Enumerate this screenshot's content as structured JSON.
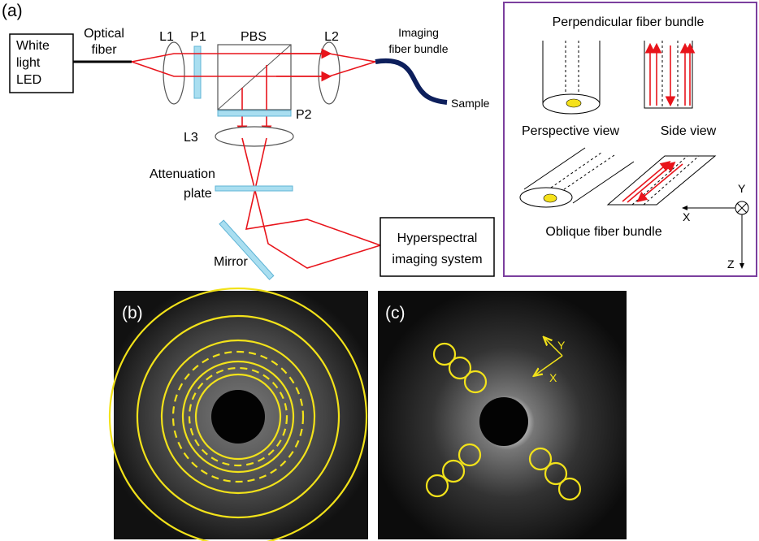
{
  "panel_a": {
    "label": "(a)",
    "source": [
      "White",
      "light",
      "LED"
    ],
    "optical_fiber": [
      "Optical",
      "fiber"
    ],
    "l1": "L1",
    "p1": "P1",
    "pbs": "PBS",
    "l2": "L2",
    "imaging_fiber_bundle": [
      "Imaging",
      "fiber bundle"
    ],
    "sample": "Sample",
    "p2": "P2",
    "l3": "L3",
    "attenuation_plate": [
      "Attenuation",
      "plate"
    ],
    "mirror": "Mirror",
    "hyperspectral": [
      "Hyperspectral",
      "imaging system"
    ]
  },
  "inset": {
    "title": "Perpendicular fiber bundle",
    "perspective_view": "Perspective view",
    "side_view": "Side view",
    "oblique_title": "Oblique fiber bundle",
    "axis_y": "Y",
    "axis_x": "X",
    "axis_z": "Z"
  },
  "panel_b": {
    "label": "(b)"
  },
  "panel_c": {
    "label": "(c)",
    "axis_y": "Y",
    "axis_x": "X"
  }
}
